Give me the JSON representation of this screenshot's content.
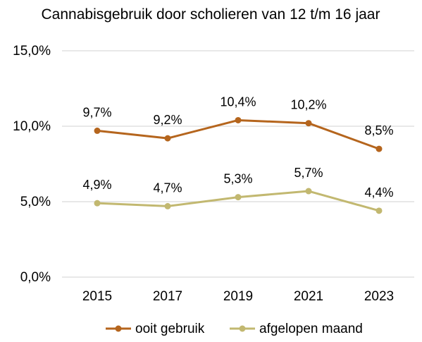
{
  "chart_data": {
    "type": "line",
    "title": "Cannabisgebruik door scholieren van 12 t/m 16 jaar",
    "categories": [
      "2015",
      "2017",
      "2019",
      "2021",
      "2023"
    ],
    "ylim": [
      0,
      15
    ],
    "yticks": [
      0,
      5,
      10,
      15
    ],
    "ytick_labels": [
      "0,0%",
      "5,0%",
      "10,0%",
      "15,0%"
    ],
    "grid": true,
    "legend_position": "bottom",
    "series": [
      {
        "name": "ooit gebruik",
        "color": "#b5651d",
        "values": [
          9.7,
          9.2,
          10.4,
          10.2,
          8.5
        ],
        "labels": [
          "9,7%",
          "9,2%",
          "10,4%",
          "10,2%",
          "8,5%"
        ]
      },
      {
        "name": "afgelopen maand",
        "color": "#c2b870",
        "values": [
          4.9,
          4.7,
          5.3,
          5.7,
          4.4
        ],
        "labels": [
          "4,9%",
          "4,7%",
          "5,3%",
          "5,7%",
          "4,4%"
        ]
      }
    ]
  }
}
